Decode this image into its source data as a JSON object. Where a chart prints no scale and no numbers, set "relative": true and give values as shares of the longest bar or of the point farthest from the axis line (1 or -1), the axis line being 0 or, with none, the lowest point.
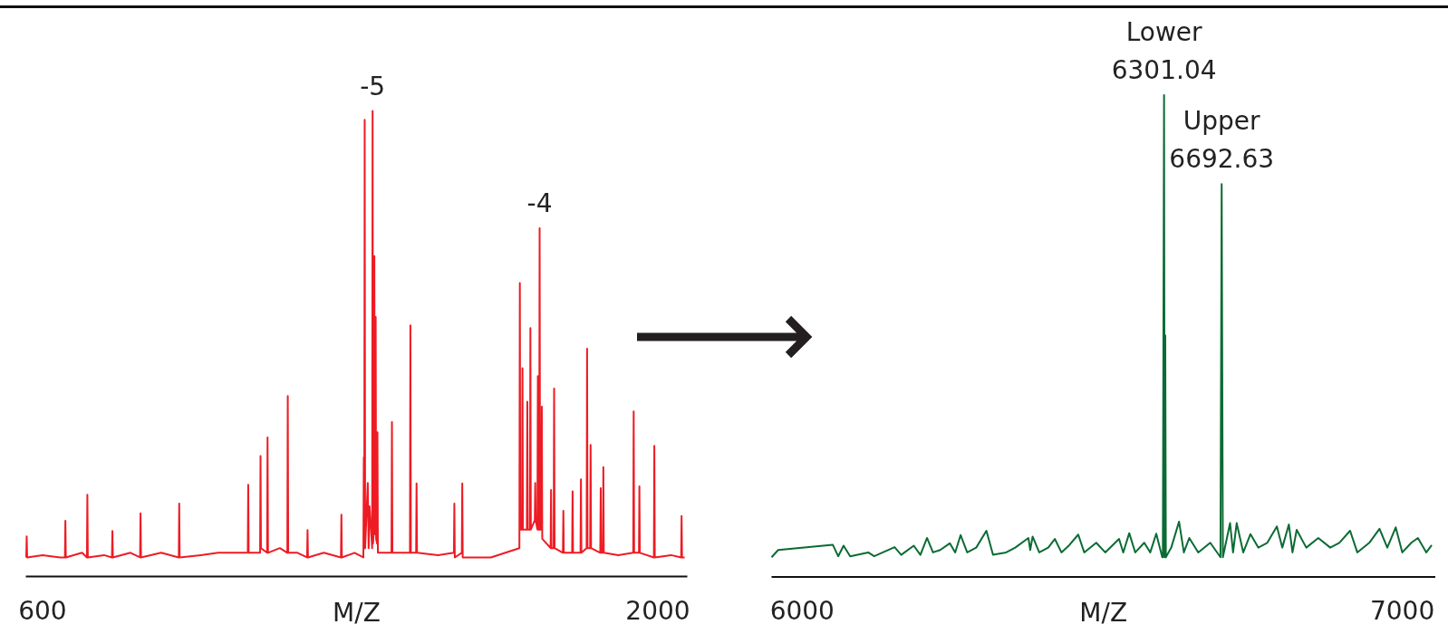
{
  "chart_data": [
    {
      "type": "line",
      "relative": true,
      "xlabel": "M/Z",
      "xlim": [
        562,
        2067
      ],
      "xticks": [
        600,
        2000
      ],
      "tick_labels": "x",
      "annotations": [
        {
          "text": "-5",
          "x": 1351,
          "y": 1.0
        },
        {
          "text": "-4",
          "x": 1731,
          "y": 0.748
        }
      ],
      "series": [
        {
          "color": "#ed1c24",
          "x": [
            563,
            564,
            565,
            600,
            640,
            651,
            652,
            653,
            690,
            701,
            702,
            703,
            740,
            758,
            759,
            760,
            800,
            822,
            823,
            824,
            870,
            910,
            911,
            912,
            960,
            1000,
            1040,
            1067,
            1068,
            1069,
            1095,
            1096,
            1097,
            1111,
            1112,
            1113,
            1140,
            1157,
            1158,
            1159,
            1180,
            1202,
            1203,
            1204,
            1240,
            1279,
            1280,
            1281,
            1310,
            1330,
            1331,
            1332,
            1333,
            1334,
            1340,
            1342,
            1344,
            1350,
            1351,
            1352,
            1354,
            1355,
            1356,
            1357,
            1358,
            1359,
            1361,
            1362,
            1363,
            1394,
            1395,
            1396,
            1420,
            1436,
            1437,
            1438,
            1450,
            1451,
            1452,
            1500,
            1536,
            1537,
            1538,
            1554,
            1555,
            1556,
            1620,
            1685,
            1686,
            1687,
            1691,
            1692,
            1693,
            1702,
            1703,
            1704,
            1709,
            1710,
            1711,
            1720,
            1721,
            1722,
            1726,
            1727,
            1728,
            1730,
            1731,
            1732,
            1735,
            1736,
            1737,
            1756,
            1757,
            1758,
            1763,
            1764,
            1765,
            1784,
            1785,
            1786,
            1805,
            1806,
            1807,
            1824,
            1825,
            1826,
            1838,
            1839,
            1840,
            1846,
            1847,
            1848,
            1869,
            1870,
            1871,
            1875,
            1876,
            1877,
            1910,
            1944,
            1945,
            1946,
            1957,
            1958,
            1959,
            1991,
            1992,
            1993,
            2030,
            2053,
            2054,
            2055,
            2061
          ],
          "values": [
            0.04,
            0.085,
            0.04,
            0.045,
            0.04,
            0.04,
            0.119,
            0.04,
            0.05,
            0.04,
            0.175,
            0.04,
            0.045,
            0.04,
            0.097,
            0.04,
            0.05,
            0.04,
            0.135,
            0.04,
            0.05,
            0.04,
            0.156,
            0.04,
            0.045,
            0.05,
            0.05,
            0.05,
            0.196,
            0.05,
            0.05,
            0.258,
            0.06,
            0.05,
            0.298,
            0.05,
            0.06,
            0.05,
            0.387,
            0.05,
            0.05,
            0.04,
            0.099,
            0.04,
            0.05,
            0.04,
            0.132,
            0.04,
            0.05,
            0.04,
            0.255,
            0.06,
            0.981,
            0.06,
            0.2,
            0.06,
            0.15,
            0.06,
            1.0,
            0.07,
            0.1,
            0.688,
            0.1,
            0.09,
            0.557,
            0.08,
            0.07,
            0.309,
            0.05,
            0.05,
            0.331,
            0.05,
            0.05,
            0.05,
            0.539,
            0.05,
            0.05,
            0.199,
            0.05,
            0.045,
            0.05,
            0.156,
            0.04,
            0.05,
            0.199,
            0.04,
            0.04,
            0.06,
            0.63,
            0.1,
            0.1,
            0.447,
            0.1,
            0.1,
            0.375,
            0.1,
            0.1,
            0.533,
            0.1,
            0.12,
            0.2,
            0.12,
            0.1,
            0.43,
            0.1,
            0.1,
            0.748,
            0.1,
            0.1,
            0.364,
            0.08,
            0.06,
            0.185,
            0.06,
            0.06,
            0.403,
            0.06,
            0.05,
            0.14,
            0.05,
            0.05,
            0.182,
            0.05,
            0.05,
            0.208,
            0.05,
            0.06,
            0.489,
            0.06,
            0.06,
            0.282,
            0.06,
            0.05,
            0.189,
            0.05,
            0.05,
            0.234,
            0.05,
            0.045,
            0.05,
            0.354,
            0.05,
            0.05,
            0.193,
            0.05,
            0.04,
            0.28,
            0.04,
            0.045,
            0.04,
            0.129,
            0.04,
            0.04
          ]
        }
      ]
    },
    {
      "type": "line",
      "relative": true,
      "xlabel": "M/Z",
      "xlim": [
        5949,
        7055
      ],
      "xticks": [
        6000,
        7000
      ],
      "tick_labels": "x",
      "annotations": [
        {
          "text": "Lower\n6301.04",
          "x": 6603,
          "y": 1.0
        },
        {
          "text": "Upper\n6692.63",
          "x": 6699,
          "y": 0.815
        }
      ],
      "series": [
        {
          "color": "#0b6b34",
          "x": [
            5949,
            5960,
            6051,
            6060,
            6069,
            6080,
            6110,
            6120,
            6154,
            6165,
            6186,
            6197,
            6208,
            6218,
            6230,
            6246,
            6255,
            6264,
            6275,
            6290,
            6307,
            6318,
            6340,
            6355,
            6377,
            6380,
            6384,
            6395,
            6410,
            6421,
            6432,
            6445,
            6460,
            6470,
            6490,
            6505,
            6528,
            6535,
            6545,
            6555,
            6570,
            6580,
            6590,
            6600,
            6601,
            6603,
            6604,
            6605,
            6606,
            6615,
            6628,
            6636,
            6645,
            6660,
            6680,
            6697,
            6699,
            6701,
            6713,
            6718,
            6724,
            6735,
            6747,
            6760,
            6775,
            6791,
            6800,
            6811,
            6817,
            6824,
            6840,
            6860,
            6880,
            6895,
            6913,
            6925,
            6945,
            6962,
            6975,
            6989,
            7000,
            7015,
            7026,
            7040,
            7049
          ],
          "values": [
            0.04,
            0.055,
            0.066,
            0.042,
            0.064,
            0.042,
            0.05,
            0.042,
            0.061,
            0.045,
            0.064,
            0.045,
            0.08,
            0.05,
            0.055,
            0.069,
            0.05,
            0.086,
            0.05,
            0.06,
            0.095,
            0.045,
            0.05,
            0.06,
            0.08,
            0.055,
            0.083,
            0.05,
            0.06,
            0.078,
            0.05,
            0.065,
            0.087,
            0.05,
            0.07,
            0.05,
            0.078,
            0.05,
            0.09,
            0.05,
            0.07,
            0.05,
            0.089,
            0.04,
            0.04,
            1.0,
            0.04,
            0.501,
            0.04,
            0.06,
            0.114,
            0.05,
            0.08,
            0.05,
            0.07,
            0.04,
            0.815,
            0.04,
            0.111,
            0.05,
            0.111,
            0.05,
            0.088,
            0.06,
            0.07,
            0.104,
            0.06,
            0.108,
            0.05,
            0.097,
            0.06,
            0.08,
            0.06,
            0.07,
            0.095,
            0.05,
            0.07,
            0.099,
            0.06,
            0.102,
            0.05,
            0.07,
            0.08,
            0.05,
            0.065
          ]
        }
      ]
    }
  ]
}
